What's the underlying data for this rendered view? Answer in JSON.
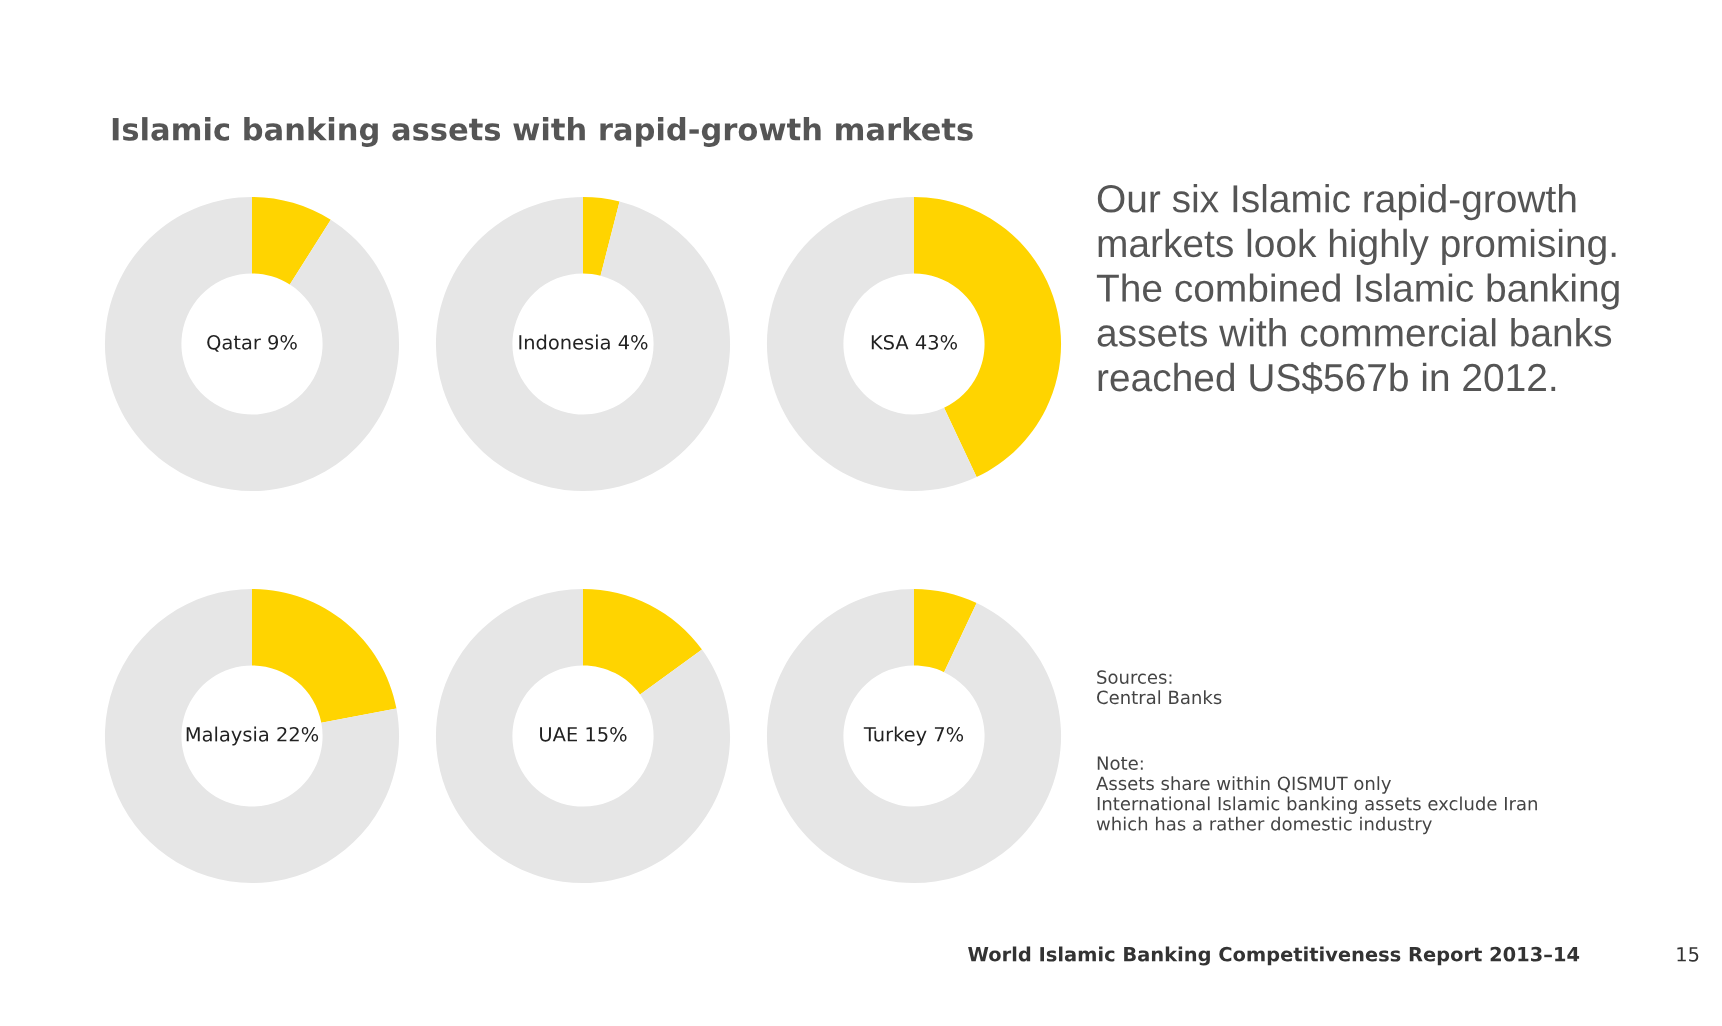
{
  "chart_data": [
    {
      "type": "donut",
      "title": "Islamic banking assets with rapid-growth markets",
      "categories": [
        null,
        null
      ],
      "values": [
        9,
        91
      ],
      "colors": [
        "#ffd400",
        "#e6e6e6"
      ],
      "annotations": [
        "Qatar 9%"
      ]
    },
    {
      "type": "donut",
      "categories": [
        null,
        null
      ],
      "values": [
        4,
        96
      ],
      "colors": [
        "#ffd400",
        "#e6e6e6"
      ],
      "annotations": [
        "Indonesia 4%"
      ]
    },
    {
      "type": "donut",
      "categories": [
        null,
        null
      ],
      "values": [
        43,
        57
      ],
      "colors": [
        "#ffd400",
        "#e6e6e6"
      ],
      "annotations": [
        "KSA 43%"
      ]
    },
    {
      "type": "donut",
      "categories": [
        null,
        null
      ],
      "values": [
        22,
        78
      ],
      "colors": [
        "#ffd400",
        "#e6e6e6"
      ],
      "annotations": [
        "Malaysia 22%"
      ]
    },
    {
      "type": "donut",
      "categories": [
        null,
        null
      ],
      "values": [
        15,
        85
      ],
      "colors": [
        "#ffd400",
        "#e6e6e6"
      ],
      "annotations": [
        "UAE 15%"
      ]
    },
    {
      "type": "donut",
      "categories": [
        null,
        null
      ],
      "values": [
        7,
        93
      ],
      "colors": [
        "#ffd400",
        "#e6e6e6"
      ],
      "annotations": [
        "Turkey 7%"
      ]
    },
    {
      "type": "other",
      "annotations": [
        "Our six Islamic rapid-growth\nmarkets look highly promising.\nThe combined Islamic banking\nassets with commercial banks\nreached US$567b in 2012.",
        "Sources:\nCentral Banks",
        "Note:\nAssets share within QISMUT only\nInternational Islamic banking assets exclude Iran\nwhich has a rather domestic industry",
        "World Islamic Banking Competitiveness Report 2013–14",
        "15"
      ]
    }
  ]
}
